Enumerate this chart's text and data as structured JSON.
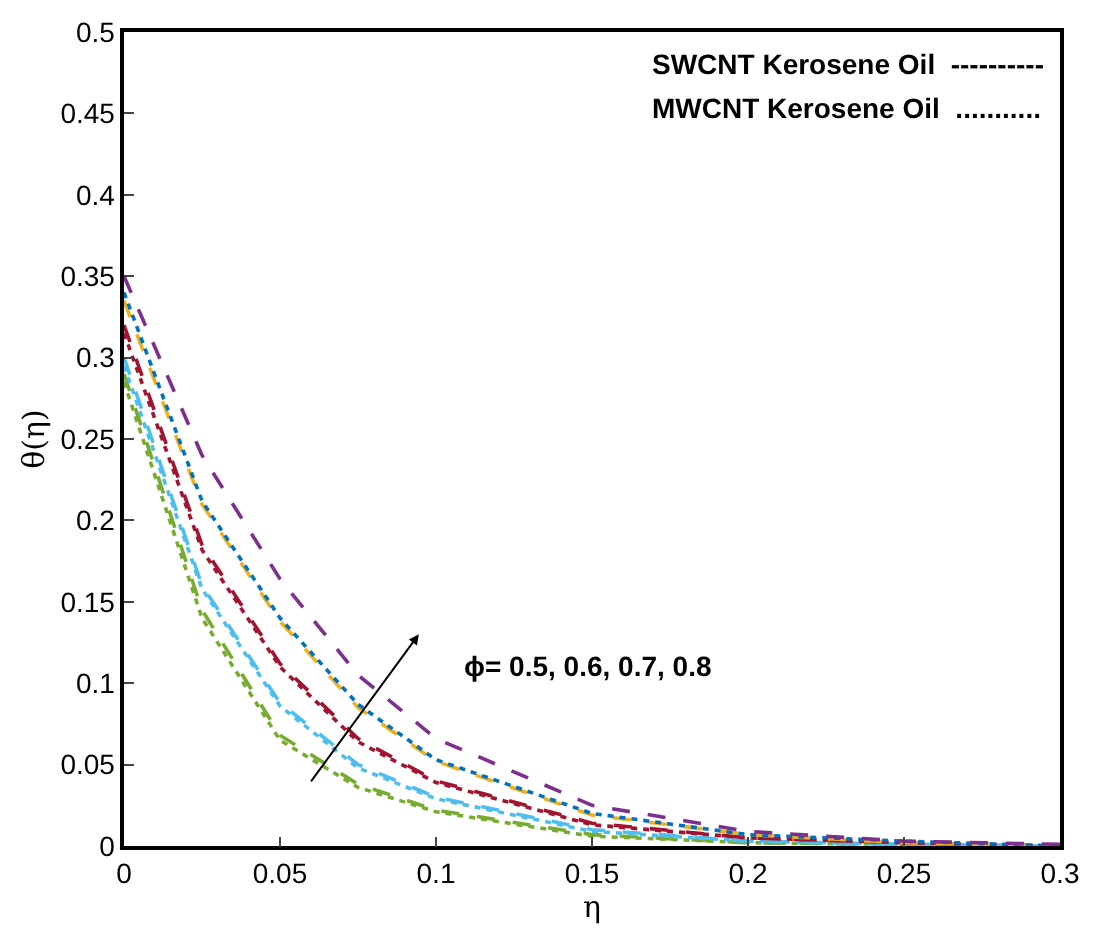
{
  "chart_data": {
    "type": "line",
    "xlabel": "η",
    "ylabel": "θ(η)",
    "x": [
      0,
      0.025,
      0.05,
      0.075,
      0.1,
      0.15,
      0.2,
      0.25,
      0.3
    ],
    "xlim": [
      0,
      0.3
    ],
    "xticks": [
      0,
      0.05,
      0.1,
      0.15,
      0.2,
      0.25,
      0.3
    ],
    "ylim": [
      0,
      0.5
    ],
    "yticks": [
      0,
      0.05,
      0.1,
      0.15,
      0.2,
      0.25,
      0.3,
      0.35,
      0.4,
      0.45,
      0.5
    ],
    "marker": "none",
    "series": [
      {
        "color": "#77ac30",
        "line_style": "dashed",
        "values": [
          0.29,
          0.145,
          0.068,
          0.038,
          0.022,
          0.007,
          0.002,
          0.001,
          0
        ]
      },
      {
        "color": "#77ac30",
        "line_style": "dotted",
        "values": [
          0.285,
          0.14,
          0.065,
          0.036,
          0.021,
          0.006,
          0.002,
          0.001,
          0
        ]
      },
      {
        "color": "#4dbeee",
        "line_style": "dashed",
        "values": [
          0.3,
          0.16,
          0.088,
          0.05,
          0.03,
          0.01,
          0.003,
          0.001,
          0
        ]
      },
      {
        "color": "#4dbeee",
        "line_style": "dotted",
        "values": [
          0.295,
          0.158,
          0.086,
          0.048,
          0.029,
          0.009,
          0.003,
          0.001,
          0
        ]
      },
      {
        "color": "#a2142f",
        "line_style": "dashed",
        "values": [
          0.32,
          0.185,
          0.112,
          0.066,
          0.04,
          0.014,
          0.005,
          0.002,
          0
        ]
      },
      {
        "color": "#a2142f",
        "line_style": "dotted",
        "values": [
          0.315,
          0.182,
          0.11,
          0.064,
          0.039,
          0.013,
          0.005,
          0.002,
          0
        ]
      },
      {
        "color": "#edb120",
        "line_style": "dashed",
        "values": [
          0.335,
          0.21,
          0.138,
          0.085,
          0.052,
          0.019,
          0.007,
          0.002,
          0
        ]
      },
      {
        "color": "#0072bd",
        "line_style": "dotted",
        "values": [
          0.34,
          0.212,
          0.14,
          0.087,
          0.053,
          0.02,
          0.007,
          0.003,
          0
        ]
      },
      {
        "color": "#7e2f8e",
        "line_style": "dashed",
        "values": [
          0.35,
          0.24,
          0.164,
          0.105,
          0.066,
          0.025,
          0.009,
          0.003,
          0.001
        ]
      }
    ],
    "annotations": [
      "SWCNT Kerosene Oil  ----------",
      "MWCNT Kerosene Oil  ...........",
      "ϕ= 0.5, 0.6, 0.7, 0.8"
    ]
  }
}
